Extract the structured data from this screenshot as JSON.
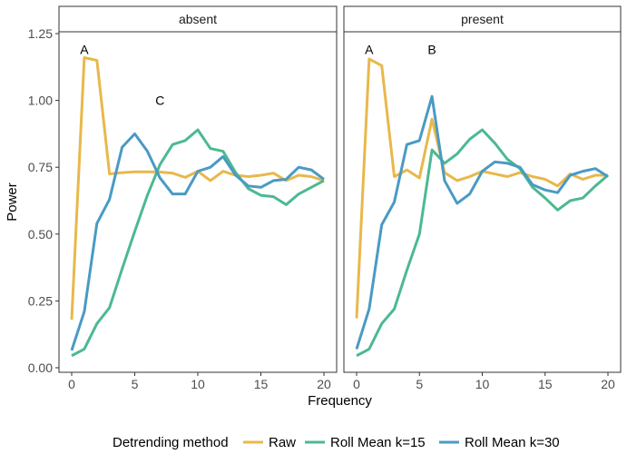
{
  "chart_data": {
    "type": "line",
    "xlabel": "Frequency",
    "ylabel": "Power",
    "xlim": [
      0,
      20
    ],
    "ylim": [
      0,
      1.25
    ],
    "x_ticks": [
      0,
      5,
      10,
      15,
      20
    ],
    "y_ticks": [
      0.0,
      0.25,
      0.5,
      0.75,
      1.0,
      1.25
    ],
    "y_tick_labels": [
      "0.00",
      "0.25",
      "0.50",
      "0.75",
      "1.00",
      "1.25"
    ],
    "legend": {
      "title": "Detrending method",
      "position": "bottom",
      "items": [
        "Raw",
        "Roll Mean k=15",
        "Roll Mean k=30"
      ]
    },
    "series_colors": {
      "Raw": "#E8B84B",
      "Roll Mean k=15": "#4CB991",
      "Roll Mean k=30": "#4A9AC4"
    },
    "panels": [
      {
        "label": "absent",
        "annotations": [
          {
            "text": "A",
            "x": 1,
            "y": 1.19
          },
          {
            "text": "C",
            "x": 7,
            "y": 1.0
          }
        ],
        "series": [
          {
            "name": "Raw",
            "x": [
              0,
              1,
              2,
              3,
              4,
              5,
              6,
              7,
              8,
              9,
              10,
              11,
              12,
              13,
              14,
              15,
              16,
              17,
              18,
              19,
              20
            ],
            "values": [
              0.18,
              1.16,
              1.15,
              0.725,
              0.73,
              0.733,
              0.733,
              0.732,
              0.728,
              0.712,
              0.735,
              0.7,
              0.735,
              0.72,
              0.715,
              0.72,
              0.728,
              0.7,
              0.72,
              0.715,
              0.7
            ]
          },
          {
            "name": "Roll Mean k=15",
            "x": [
              0,
              1,
              2,
              3,
              4,
              5,
              6,
              7,
              8,
              9,
              10,
              11,
              12,
              13,
              14,
              15,
              16,
              17,
              18,
              19,
              20
            ],
            "values": [
              0.045,
              0.07,
              0.165,
              0.225,
              0.37,
              0.51,
              0.645,
              0.76,
              0.835,
              0.85,
              0.89,
              0.82,
              0.81,
              0.73,
              0.67,
              0.645,
              0.64,
              0.61,
              0.65,
              0.675,
              0.7
            ]
          },
          {
            "name": "Roll Mean k=30",
            "x": [
              0,
              1,
              2,
              3,
              4,
              5,
              6,
              7,
              8,
              9,
              10,
              11,
              12,
              13,
              14,
              15,
              16,
              17,
              18,
              19,
              20
            ],
            "values": [
              0.065,
              0.21,
              0.54,
              0.63,
              0.825,
              0.875,
              0.81,
              0.71,
              0.65,
              0.65,
              0.735,
              0.75,
              0.79,
              0.72,
              0.68,
              0.675,
              0.7,
              0.705,
              0.75,
              0.74,
              0.705
            ]
          }
        ]
      },
      {
        "label": "present",
        "annotations": [
          {
            "text": "A",
            "x": 1,
            "y": 1.19
          },
          {
            "text": "B",
            "x": 6,
            "y": 1.19
          }
        ],
        "series": [
          {
            "name": "Raw",
            "x": [
              0,
              1,
              2,
              3,
              4,
              5,
              6,
              7,
              8,
              9,
              10,
              11,
              12,
              13,
              14,
              15,
              16,
              17,
              18,
              19,
              20
            ],
            "values": [
              0.185,
              1.155,
              1.13,
              0.715,
              0.74,
              0.71,
              0.93,
              0.73,
              0.7,
              0.715,
              0.735,
              0.725,
              0.715,
              0.73,
              0.715,
              0.705,
              0.68,
              0.725,
              0.705,
              0.72,
              0.72
            ]
          },
          {
            "name": "Roll Mean k=15",
            "x": [
              0,
              1,
              2,
              3,
              4,
              5,
              6,
              7,
              8,
              9,
              10,
              11,
              12,
              13,
              14,
              15,
              16,
              17,
              18,
              19,
              20
            ],
            "values": [
              0.045,
              0.07,
              0.165,
              0.22,
              0.365,
              0.5,
              0.815,
              0.765,
              0.8,
              0.855,
              0.89,
              0.84,
              0.78,
              0.745,
              0.675,
              0.635,
              0.59,
              0.625,
              0.635,
              0.68,
              0.72
            ]
          },
          {
            "name": "Roll Mean k=30",
            "x": [
              0,
              1,
              2,
              3,
              4,
              5,
              6,
              7,
              8,
              9,
              10,
              11,
              12,
              13,
              14,
              15,
              16,
              17,
              18,
              19,
              20
            ],
            "values": [
              0.07,
              0.22,
              0.535,
              0.62,
              0.835,
              0.85,
              1.015,
              0.7,
              0.615,
              0.65,
              0.735,
              0.77,
              0.765,
              0.75,
              0.685,
              0.665,
              0.655,
              0.72,
              0.735,
              0.745,
              0.715
            ]
          }
        ]
      }
    ]
  }
}
